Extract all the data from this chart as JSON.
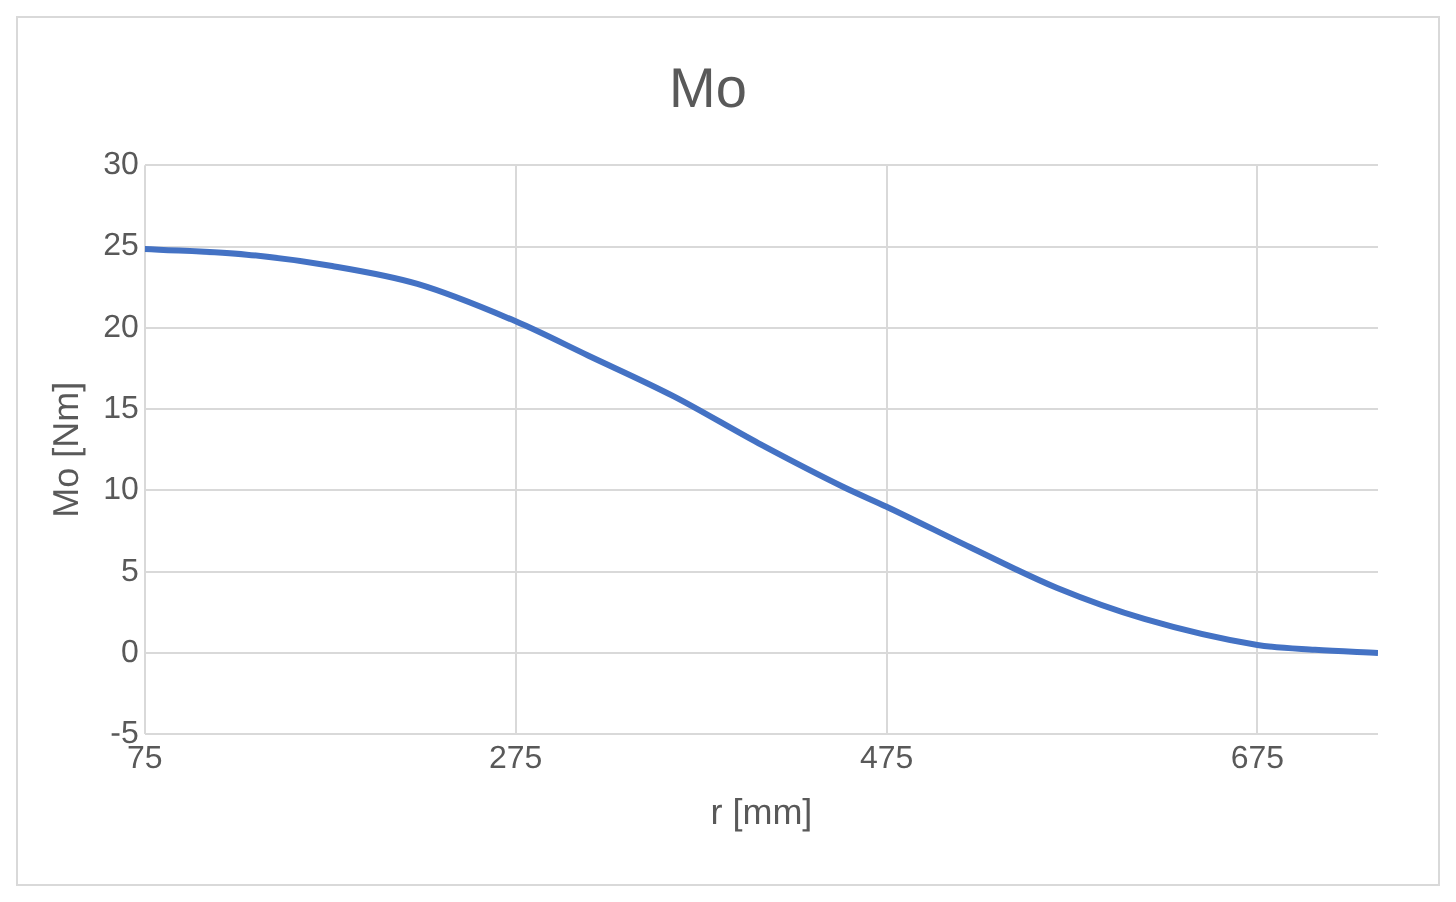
{
  "chart_data": {
    "type": "line",
    "title": "Mo",
    "xlabel": "r [mm]",
    "ylabel": "Mo [Nm]",
    "x": [
      75,
      130,
      176,
      222,
      275,
      314,
      360,
      406,
      452,
      475,
      522,
      567,
      614,
      675,
      706,
      740
    ],
    "series": [
      {
        "color": "#4472c4",
        "values": [
          24.85,
          24.5,
          23.8,
          22.7,
          20.4,
          18.3,
          15.8,
          12.9,
          10.2,
          9.0,
          6.4,
          4.0,
          2.1,
          0.5,
          0.2,
          0
        ]
      }
    ],
    "xlim": [
      75,
      740
    ],
    "xticks": [
      75,
      275,
      475,
      675
    ],
    "ylim": [
      -5,
      30
    ],
    "yticks": [
      -5,
      0,
      5,
      10,
      15,
      20,
      25,
      30
    ],
    "grid": true,
    "legend": false,
    "marker": "none",
    "line_style": "solid"
  }
}
